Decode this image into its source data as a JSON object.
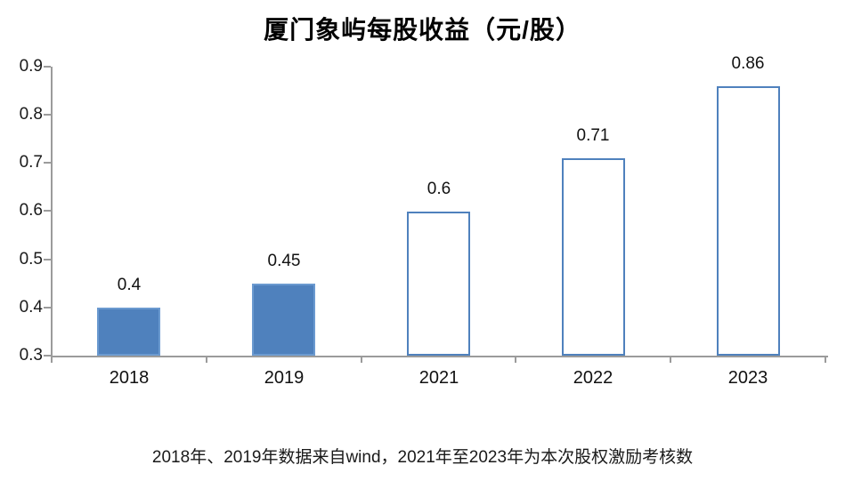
{
  "chart_data": {
    "type": "bar",
    "title": "厦门象屿每股收益（元/股）",
    "categories": [
      "2018",
      "2019",
      "2021",
      "2022",
      "2023"
    ],
    "values": [
      0.4,
      0.45,
      0.6,
      0.71,
      0.86
    ],
    "value_labels": [
      "0.4",
      "0.45",
      "0.6",
      "0.71",
      "0.86"
    ],
    "bar_styles": [
      "solid",
      "solid",
      "outline",
      "outline",
      "outline"
    ],
    "ylim": [
      0.3,
      0.9
    ],
    "ytick_labels": [
      "0.3",
      "0.4",
      "0.5",
      "0.6",
      "0.7",
      "0.8",
      "0.9"
    ],
    "grid": false,
    "legend_position": "none",
    "colors": {
      "solid_bar_fill": "#4F81BD",
      "solid_bar_border": "#6B9AD0",
      "outline_bar_fill": "#FFFFFF",
      "outline_bar_border": "#4F81BD",
      "axis": "#9B9B9B",
      "text": "#1A1A1A"
    }
  },
  "footnote": "2018年、2019年数据来自wind，2021年至2023年为本次股权激励考核数"
}
